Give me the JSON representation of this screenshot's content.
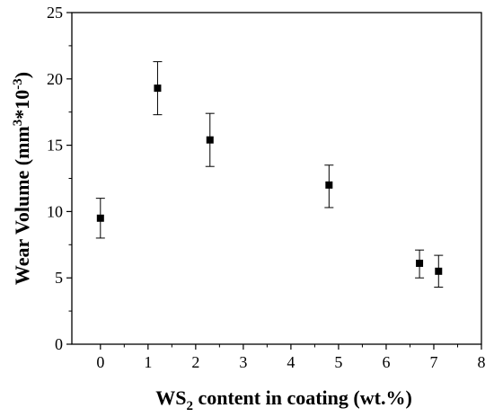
{
  "chart_data": {
    "type": "scatter",
    "xlabel": {
      "main": "WS",
      "sub": "2",
      "rest": " content in coating (wt.%)"
    },
    "ylabel": {
      "main": "Wear Volume (mm",
      "sup1": "3",
      "mid": "*10",
      "sup2": "-3",
      "end": ")"
    },
    "xlim": [
      -0.6,
      8
    ],
    "ylim": [
      0,
      25
    ],
    "xticks": [
      0,
      1,
      2,
      3,
      4,
      5,
      6,
      7,
      8
    ],
    "yticks": [
      0,
      5,
      10,
      15,
      20,
      25
    ],
    "grid": false,
    "legend": "none",
    "marker": "square",
    "color": "#000000",
    "points": [
      {
        "x": 0.0,
        "y": 9.5,
        "err_low": 8.0,
        "err_high": 11.0
      },
      {
        "x": 1.2,
        "y": 19.3,
        "err_low": 17.3,
        "err_high": 21.3
      },
      {
        "x": 2.3,
        "y": 15.4,
        "err_low": 13.4,
        "err_high": 17.4
      },
      {
        "x": 4.8,
        "y": 12.0,
        "err_low": 10.3,
        "err_high": 13.5
      },
      {
        "x": 6.7,
        "y": 6.1,
        "err_low": 5.0,
        "err_high": 7.1
      },
      {
        "x": 7.1,
        "y": 5.5,
        "err_low": 4.3,
        "err_high": 6.7
      }
    ]
  }
}
